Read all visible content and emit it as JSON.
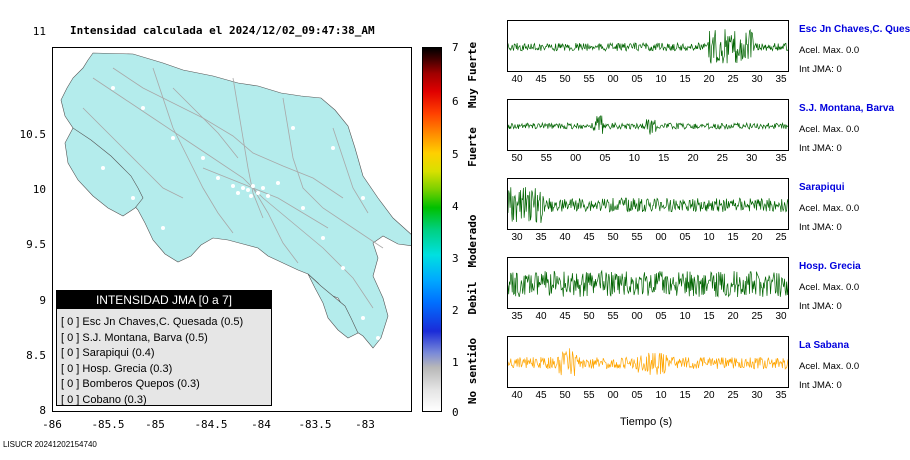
{
  "map": {
    "title": "Intensidad calculada el 2024/12/02_09:47:38_AM",
    "y_ticks": [
      "11",
      "10.5",
      "10",
      "9.5",
      "9",
      "8.5",
      "8"
    ],
    "x_ticks": [
      "-86",
      "-85.5",
      "-85",
      "-84.5",
      "-84",
      "-83.5",
      "-83"
    ],
    "land_color": "#b4ecec",
    "road_color": "#a8a8a8"
  },
  "colorbar": {
    "ticks": [
      "7",
      "6",
      "5",
      "4",
      "3",
      "2",
      "1",
      "0"
    ],
    "labels": [
      "Muy Fuerte",
      "Fuerte",
      "Moderado",
      "Debil",
      "No sentido"
    ]
  },
  "legend": {
    "title": "INTENSIDAD JMA [0 a 7]",
    "items": [
      "[ 0 ]  Esc Jn Chaves,C. Quesada (0.5)",
      "[ 0 ]  S.J. Montana, Barva (0.5)",
      "[ 0 ]  Sarapiqui (0.4)",
      "[ 0 ]  Hosp. Grecia (0.3)",
      "[ 0 ]  Bomberos Quepos (0.3)",
      "[ 0 ]  Cobano (0.3)"
    ]
  },
  "stations": [
    {
      "name": "Esc Jn Chaves,C. Ques",
      "acel": "Acel. Max. 0.0",
      "jma": "Int JMA: 0",
      "color": "#006400",
      "ticks": [
        "40",
        "45",
        "50",
        "55",
        "00",
        "05",
        "10",
        "15",
        "20",
        "25",
        "30",
        "35"
      ]
    },
    {
      "name": "S.J. Montana, Barva",
      "acel": "Acel. Max. 0.0",
      "jma": "Int JMA: 0",
      "color": "#006400",
      "ticks": [
        "50",
        "55",
        "00",
        "05",
        "10",
        "15",
        "20",
        "25",
        "30",
        "35"
      ]
    },
    {
      "name": "Sarapiqui",
      "acel": "Acel. Max. 0.0",
      "jma": "Int JMA: 0",
      "color": "#006400",
      "ticks": [
        "30",
        "35",
        "40",
        "45",
        "50",
        "55",
        "00",
        "05",
        "10",
        "15",
        "20",
        "25"
      ]
    },
    {
      "name": "Hosp. Grecia",
      "acel": "Acel. Max. 0.0",
      "jma": "Int JMA: 0",
      "color": "#006400",
      "ticks": [
        "35",
        "40",
        "45",
        "50",
        "55",
        "00",
        "05",
        "10",
        "15",
        "20",
        "25",
        "30"
      ]
    },
    {
      "name": "La Sabana",
      "acel": "Acel. Max. 0.0",
      "jma": "Int JMA: 0",
      "color": "#ffa500",
      "ticks": [
        "40",
        "45",
        "50",
        "55",
        "00",
        "05",
        "10",
        "15",
        "20",
        "25",
        "30",
        "35"
      ]
    }
  ],
  "time_axis_label": "Tiempo (s)",
  "footer": "LISUCR 20241202154740"
}
